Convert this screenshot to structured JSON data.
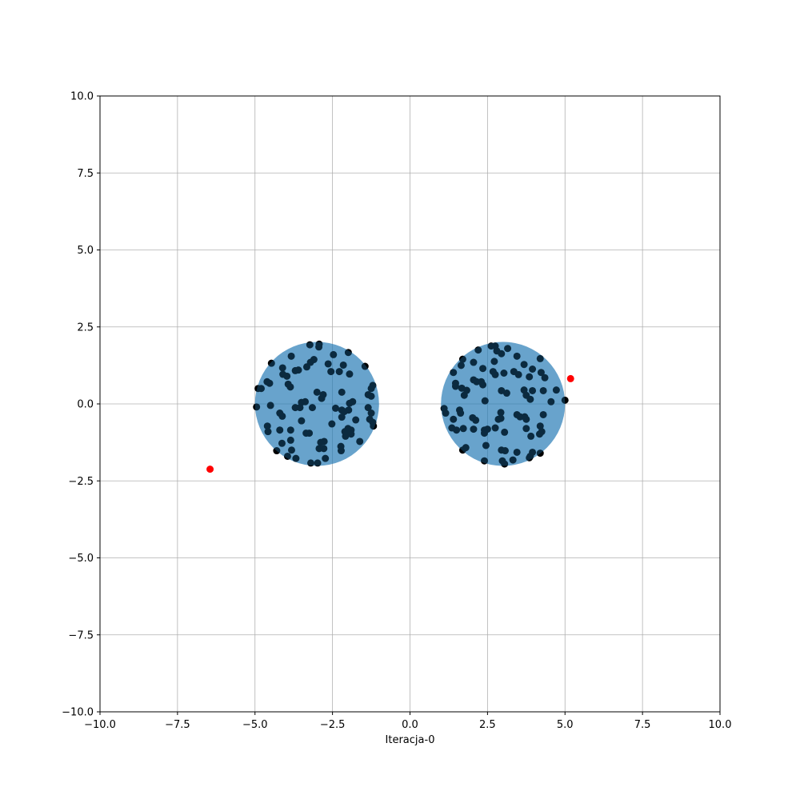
{
  "chart_data": {
    "type": "scatter",
    "title": "",
    "xlabel": "Iteracja-0",
    "ylabel": "",
    "xlim": [
      -10,
      10
    ],
    "ylim": [
      -10,
      10
    ],
    "grid": true,
    "xticks": [
      -10,
      -7.5,
      -5,
      -2.5,
      0,
      2.5,
      5,
      7.5,
      10
    ],
    "yticks": [
      -10,
      -7.5,
      -5,
      -2.5,
      0,
      2.5,
      5,
      7.5,
      10
    ],
    "xtick_labels": [
      "−10.0",
      "−7.5",
      "−5.0",
      "−2.5",
      "0.0",
      "2.5",
      "5.0",
      "7.5",
      "10.0"
    ],
    "ytick_labels": [
      "−10.0",
      "−7.5",
      "−5.0",
      "−2.5",
      "0.0",
      "2.5",
      "5.0",
      "7.5",
      "10.0"
    ],
    "regions": [
      {
        "cx": -3.0,
        "cy": 0.0,
        "r": 2.0,
        "color": "#1f77b4",
        "alpha": 0.5
      },
      {
        "cx": 3.0,
        "cy": 0.0,
        "r": 2.0,
        "color": "#1f77b4",
        "alpha": 0.5
      }
    ],
    "series": [
      {
        "color": "#000000",
        "points": [
          [
            -3.23,
            1.92
          ],
          [
            -2.93,
            1.94
          ],
          [
            -2.94,
            1.85
          ],
          [
            -3.21,
            1.35
          ],
          [
            -3.1,
            1.44
          ],
          [
            -3.33,
            1.2
          ],
          [
            -2.64,
            1.3
          ],
          [
            -2.47,
            1.6
          ],
          [
            -1.99,
            1.67
          ],
          [
            -1.45,
            1.22
          ],
          [
            -2.28,
            1.05
          ],
          [
            -2.15,
            1.26
          ],
          [
            -2.55,
            1.05
          ],
          [
            -1.95,
            0.97
          ],
          [
            -3.7,
            1.08
          ],
          [
            -3.6,
            1.1
          ],
          [
            -3.83,
            1.55
          ],
          [
            -4.47,
            1.32
          ],
          [
            -4.11,
            1.17
          ],
          [
            -4.1,
            0.96
          ],
          [
            -3.97,
            0.9
          ],
          [
            -3.93,
            0.64
          ],
          [
            -3.86,
            0.55
          ],
          [
            -4.53,
            0.67
          ],
          [
            -4.61,
            0.72
          ],
          [
            -4.9,
            0.5
          ],
          [
            -4.8,
            0.5
          ],
          [
            -3.0,
            0.38
          ],
          [
            -2.8,
            0.3
          ],
          [
            -2.85,
            0.18
          ],
          [
            -2.2,
            0.38
          ],
          [
            -1.2,
            0.6
          ],
          [
            -1.25,
            0.5
          ],
          [
            -1.25,
            0.25
          ],
          [
            -1.35,
            0.3
          ],
          [
            -3.5,
            0.05
          ],
          [
            -3.38,
            0.07
          ],
          [
            -1.85,
            0.07
          ],
          [
            -1.95,
            0.02
          ],
          [
            -4.95,
            -0.1
          ],
          [
            -4.5,
            -0.05
          ],
          [
            -3.7,
            -0.12
          ],
          [
            -3.55,
            -0.12
          ],
          [
            -3.15,
            -0.12
          ],
          [
            -2.4,
            -0.14
          ],
          [
            -2.2,
            -0.2
          ],
          [
            -2.12,
            -0.25
          ],
          [
            -1.98,
            -0.2
          ],
          [
            -1.35,
            -0.12
          ],
          [
            -1.25,
            -0.3
          ],
          [
            -4.2,
            -0.3
          ],
          [
            -4.12,
            -0.4
          ],
          [
            -2.2,
            -0.43
          ],
          [
            -3.5,
            -0.55
          ],
          [
            -1.75,
            -0.52
          ],
          [
            -1.3,
            -0.5
          ],
          [
            -1.2,
            -0.6
          ],
          [
            -1.18,
            -0.72
          ],
          [
            -4.6,
            -0.72
          ],
          [
            -4.58,
            -0.9
          ],
          [
            -4.2,
            -0.85
          ],
          [
            -3.85,
            -0.85
          ],
          [
            -3.35,
            -0.95
          ],
          [
            -3.25,
            -0.95
          ],
          [
            -2.52,
            -0.65
          ],
          [
            -2.0,
            -0.8
          ],
          [
            -2.1,
            -0.9
          ],
          [
            -1.9,
            -0.85
          ],
          [
            -1.9,
            -0.98
          ],
          [
            -2.08,
            -1.05
          ],
          [
            -4.13,
            -1.28
          ],
          [
            -3.85,
            -1.18
          ],
          [
            -1.62,
            -1.22
          ],
          [
            -2.88,
            -1.25
          ],
          [
            -2.77,
            -1.22
          ],
          [
            -2.93,
            -1.45
          ],
          [
            -2.78,
            -1.45
          ],
          [
            -2.23,
            -1.38
          ],
          [
            -2.22,
            -1.52
          ],
          [
            -3.82,
            -1.5
          ],
          [
            -4.3,
            -1.52
          ],
          [
            -3.95,
            -1.7
          ],
          [
            -3.68,
            -1.77
          ],
          [
            -2.73,
            -1.77
          ],
          [
            -3.2,
            -1.92
          ],
          [
            -2.98,
            -1.92
          ],
          [
            2.75,
            1.88
          ],
          [
            2.62,
            1.88
          ],
          [
            2.2,
            1.75
          ],
          [
            2.8,
            1.72
          ],
          [
            3.15,
            1.8
          ],
          [
            2.95,
            1.63
          ],
          [
            3.45,
            1.55
          ],
          [
            1.7,
            1.45
          ],
          [
            4.2,
            1.47
          ],
          [
            2.05,
            1.35
          ],
          [
            2.72,
            1.38
          ],
          [
            3.68,
            1.28
          ],
          [
            1.65,
            1.25
          ],
          [
            2.35,
            1.15
          ],
          [
            2.68,
            1.05
          ],
          [
            3.03,
            1.0
          ],
          [
            3.35,
            1.05
          ],
          [
            3.5,
            0.95
          ],
          [
            3.95,
            1.13
          ],
          [
            4.23,
            1.02
          ],
          [
            4.35,
            0.85
          ],
          [
            1.4,
            1.02
          ],
          [
            2.75,
            0.95
          ],
          [
            3.85,
            0.88
          ],
          [
            2.05,
            0.78
          ],
          [
            2.15,
            0.72
          ],
          [
            2.3,
            0.72
          ],
          [
            1.47,
            0.67
          ],
          [
            1.47,
            0.57
          ],
          [
            1.67,
            0.51
          ],
          [
            1.83,
            0.44
          ],
          [
            1.75,
            0.28
          ],
          [
            2.35,
            0.62
          ],
          [
            2.95,
            0.43
          ],
          [
            3.12,
            0.35
          ],
          [
            3.68,
            0.45
          ],
          [
            3.75,
            0.28
          ],
          [
            3.95,
            0.43
          ],
          [
            4.3,
            0.43
          ],
          [
            4.72,
            0.45
          ],
          [
            3.88,
            0.15
          ],
          [
            4.55,
            0.07
          ],
          [
            5.0,
            0.12
          ],
          [
            2.42,
            0.1
          ],
          [
            1.1,
            -0.15
          ],
          [
            1.15,
            -0.3
          ],
          [
            1.6,
            -0.2
          ],
          [
            1.63,
            -0.3
          ],
          [
            2.93,
            -0.28
          ],
          [
            2.93,
            -0.47
          ],
          [
            2.85,
            -0.5
          ],
          [
            3.45,
            -0.35
          ],
          [
            3.55,
            -0.42
          ],
          [
            3.7,
            -0.42
          ],
          [
            3.75,
            -0.5
          ],
          [
            4.3,
            -0.35
          ],
          [
            2.02,
            -0.45
          ],
          [
            2.12,
            -0.53
          ],
          [
            1.4,
            -0.5
          ],
          [
            1.35,
            -0.78
          ],
          [
            1.5,
            -0.85
          ],
          [
            1.72,
            -0.8
          ],
          [
            2.05,
            -0.82
          ],
          [
            2.4,
            -0.85
          ],
          [
            2.5,
            -0.82
          ],
          [
            2.4,
            -0.95
          ],
          [
            3.05,
            -0.92
          ],
          [
            2.75,
            -0.78
          ],
          [
            3.75,
            -0.8
          ],
          [
            4.2,
            -0.72
          ],
          [
            4.18,
            -0.98
          ],
          [
            3.9,
            -1.05
          ],
          [
            4.25,
            -0.9
          ],
          [
            2.45,
            -1.35
          ],
          [
            1.8,
            -1.42
          ],
          [
            1.7,
            -1.5
          ],
          [
            2.95,
            -1.5
          ],
          [
            3.07,
            -1.52
          ],
          [
            3.45,
            -1.57
          ],
          [
            3.95,
            -1.57
          ],
          [
            4.2,
            -1.6
          ],
          [
            3.88,
            -1.7
          ],
          [
            3.85,
            -1.75
          ],
          [
            3.32,
            -1.82
          ],
          [
            2.4,
            -1.85
          ],
          [
            2.98,
            -1.85
          ],
          [
            3.05,
            -1.95
          ]
        ]
      },
      {
        "color": "#ff0000",
        "points": [
          [
            -6.45,
            -2.12
          ],
          [
            5.18,
            0.82
          ]
        ]
      }
    ]
  }
}
